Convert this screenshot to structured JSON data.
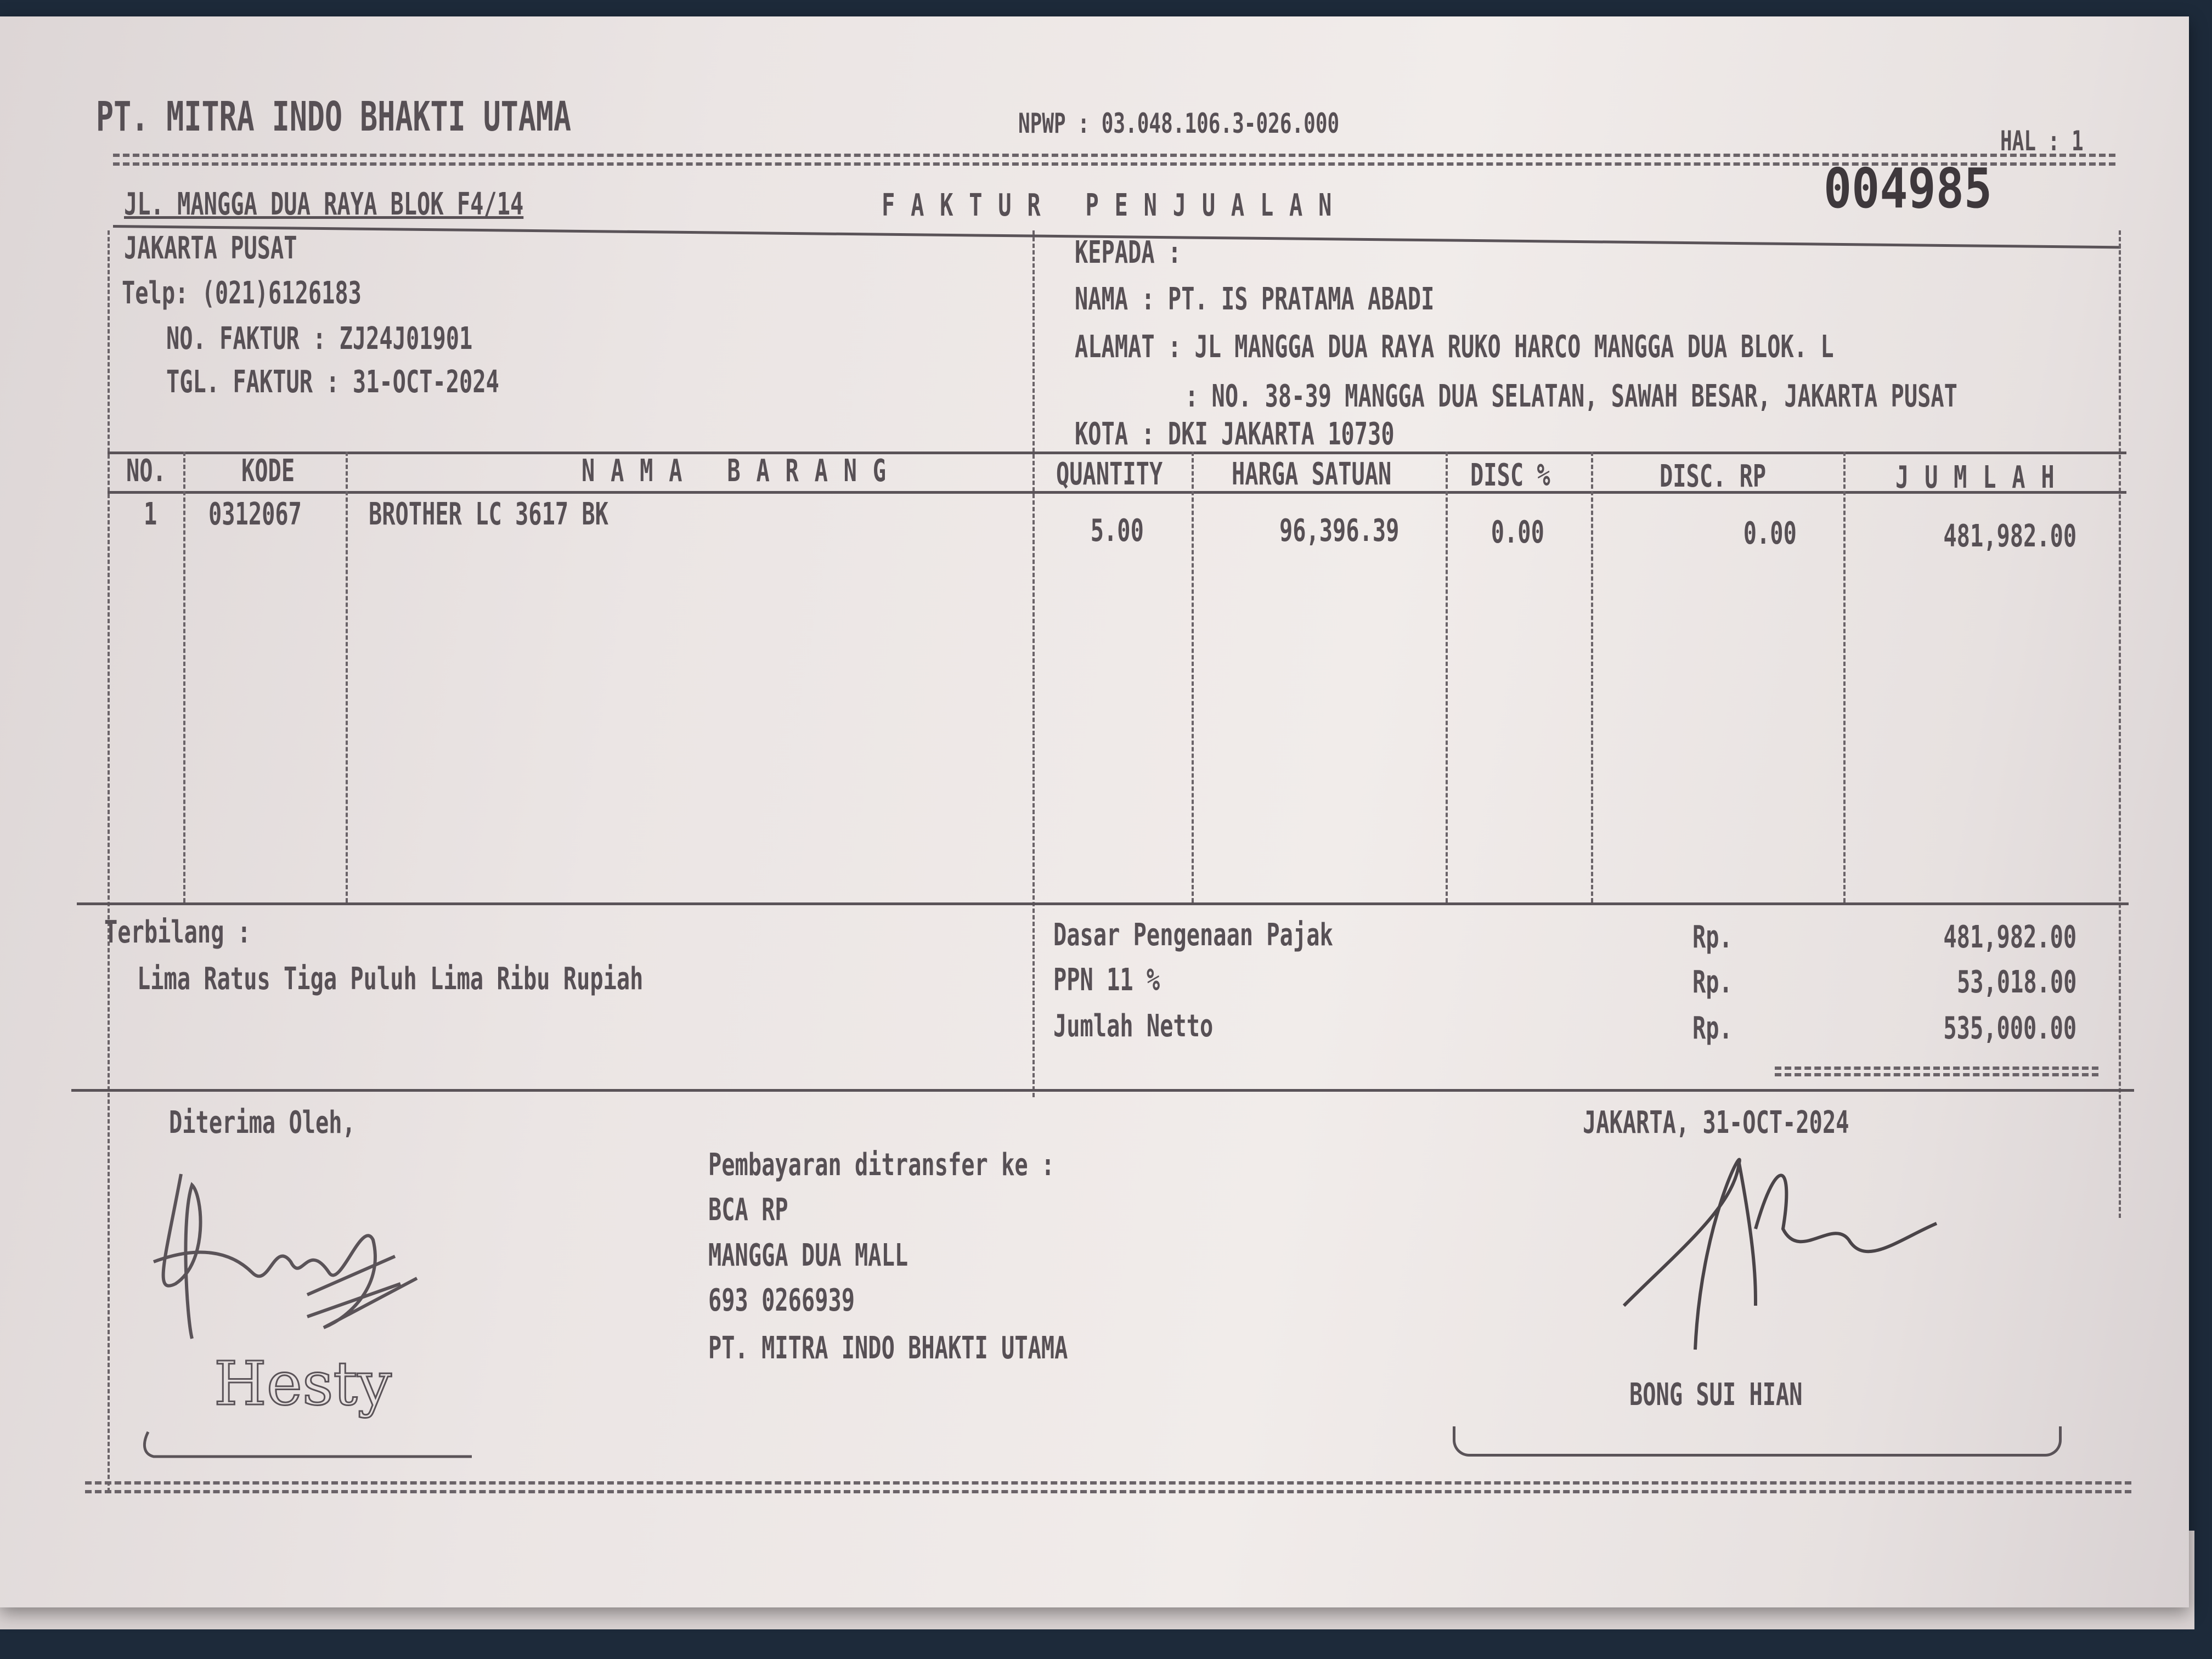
{
  "company": {
    "name": "PT. MITRA INDO BHAKTI UTAMA",
    "npwp": "NPWP : 03.048.106.3-026.000",
    "address1": "JL. MANGGA DUA RAYA BLOK F4/14",
    "address2": "JAKARTA PUSAT",
    "phone": "Telp: (021)6126183"
  },
  "page": "HAL :  1",
  "serial_stamp": "004985",
  "doc_title": "FAKTUR PENJUALAN",
  "invoice": {
    "no_label": "NO. FAKTUR : ZJ24J01901",
    "date_label": "TGL. FAKTUR : 31-OCT-2024"
  },
  "customer": {
    "kepada": "KEPADA :",
    "nama": "NAMA   : PT. IS PRATAMA ABADI",
    "alamat1": "ALAMAT : JL MANGGA DUA RAYA RUKO HARCO MANGGA DUA BLOK. L",
    "alamat2": ": NO. 38-39 MANGGA DUA SELATAN, SAWAH BESAR, JAKARTA PUSAT",
    "kota": "KOTA   : DKI JAKARTA 10730"
  },
  "table": {
    "headers": [
      "NO.",
      "KODE",
      "NAMA BARANG",
      "QUANTITY",
      "HARGA SATUAN",
      "DISC %",
      "DISC. RP",
      "JUMLAH"
    ],
    "rows": [
      [
        "1",
        "0312067",
        "BROTHER LC 3617 BK",
        "5.00",
        "96,396.39",
        "0.00",
        "0.00",
        "481,982.00"
      ]
    ]
  },
  "terbilang": {
    "label": "Terbilang :",
    "text": "Lima Ratus Tiga Puluh Lima Ribu Rupiah"
  },
  "totals": [
    {
      "label": "Dasar Pengenaan Pajak",
      "cur": "Rp.",
      "value": "481,982.00"
    },
    {
      "label": "PPN 11 %",
      "cur": "Rp.",
      "value": "53,018.00"
    },
    {
      "label": "Jumlah Netto",
      "cur": "Rp.",
      "value": "535,000.00"
    }
  ],
  "received_by": "Diterima Oleh,",
  "receiver_handwritten": "Hesty",
  "payment": [
    "Pembayaran ditransfer ke :",
    "BCA RP",
    "MANGGA DUA MALL",
    "693 0266939",
    "PT. MITRA INDO BHAKTI UTAMA"
  ],
  "place_date": "JAKARTA,  31-OCT-2024",
  "signer": "BONG SUI HIAN"
}
